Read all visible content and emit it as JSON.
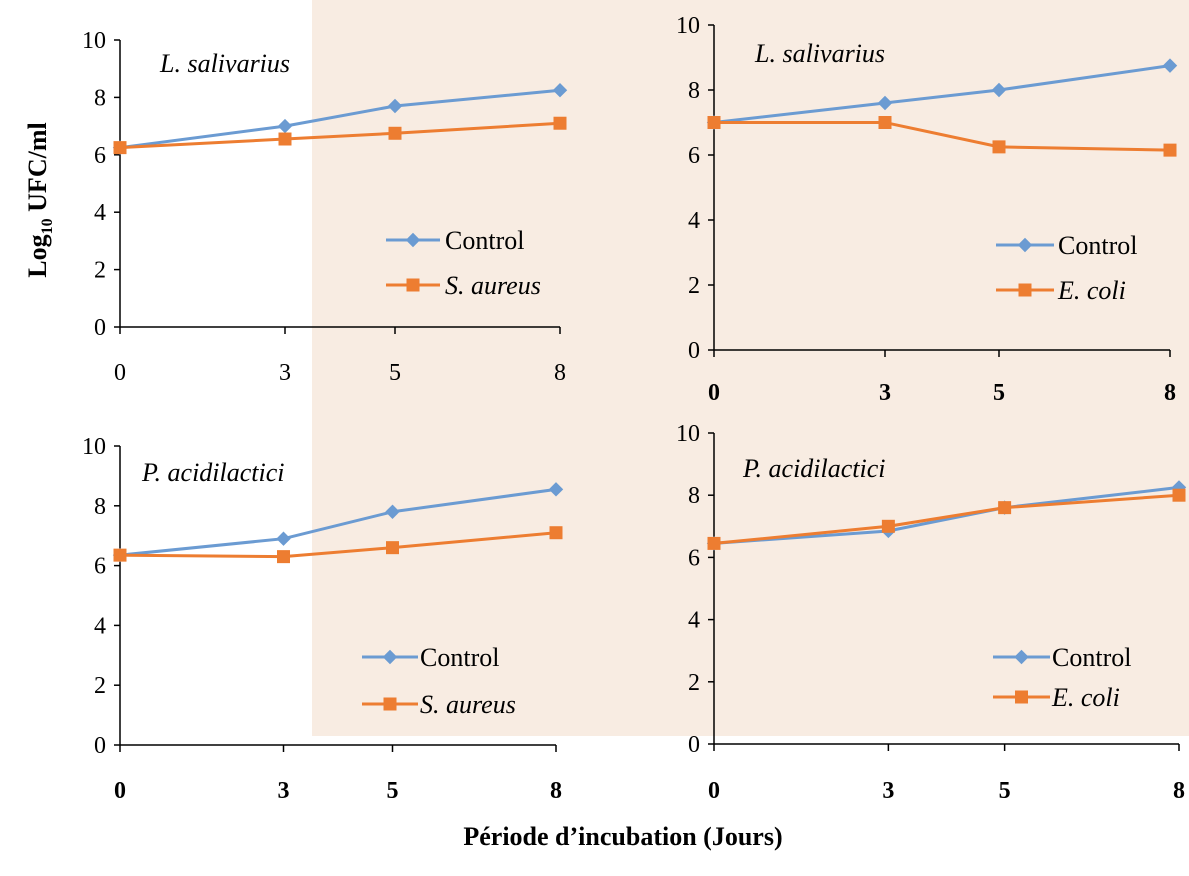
{
  "colors": {
    "control": "#6b9bd2",
    "pathogen": "#ed7d31",
    "background": "#f8ece2",
    "axis": "#000000"
  },
  "ylabel_main": "Log",
  "ylabel_sub": "10",
  "ylabel_rest": " UFC/ml",
  "xlabel": "Période d’incubation (Jours)",
  "chart_data": [
    {
      "type": "line",
      "title": "L.  salivarius",
      "categories": [
        "0",
        "3",
        "5",
        "8"
      ],
      "ylim": [
        0,
        10
      ],
      "yticks": [
        "0",
        "2",
        "4",
        "6",
        "8",
        "10"
      ],
      "bold_xticks": false,
      "series": [
        {
          "name": "Control",
          "values": [
            6.25,
            7.0,
            7.7,
            8.25
          ]
        },
        {
          "name": "S. aureus",
          "values": [
            6.25,
            6.55,
            6.75,
            7.1
          ]
        }
      ]
    },
    {
      "type": "line",
      "title": "L.  salivarius",
      "categories": [
        "0",
        "3",
        "5",
        "8"
      ],
      "ylim": [
        0,
        10
      ],
      "yticks": [
        "0",
        "2",
        "4",
        "6",
        "8",
        "10"
      ],
      "bold_xticks": true,
      "series": [
        {
          "name": "Control",
          "values": [
            7.0,
            7.6,
            8.0,
            8.75
          ]
        },
        {
          "name": "E. coli",
          "values": [
            7.0,
            7.0,
            6.25,
            6.15
          ]
        }
      ]
    },
    {
      "type": "line",
      "title": "P. acidilactici",
      "categories": [
        "0",
        "3",
        "5",
        "8"
      ],
      "ylim": [
        0,
        10
      ],
      "yticks": [
        "0",
        "2",
        "4",
        "6",
        "8",
        "10"
      ],
      "bold_xticks": true,
      "series": [
        {
          "name": "Control",
          "values": [
            6.35,
            6.9,
            7.8,
            8.55
          ]
        },
        {
          "name": "S. aureus",
          "values": [
            6.35,
            6.3,
            6.6,
            7.1
          ]
        }
      ]
    },
    {
      "type": "line",
      "title": "P. acidilactici",
      "categories": [
        "0",
        "3",
        "5",
        "8"
      ],
      "ylim": [
        0,
        10
      ],
      "yticks": [
        "0",
        "2",
        "4",
        "6",
        "8",
        "10"
      ],
      "bold_xticks": true,
      "series": [
        {
          "name": "Control",
          "values": [
            6.45,
            6.85,
            7.6,
            8.25
          ]
        },
        {
          "name": "E. coli",
          "values": [
            6.45,
            7.0,
            7.6,
            8.0
          ]
        }
      ]
    }
  ]
}
